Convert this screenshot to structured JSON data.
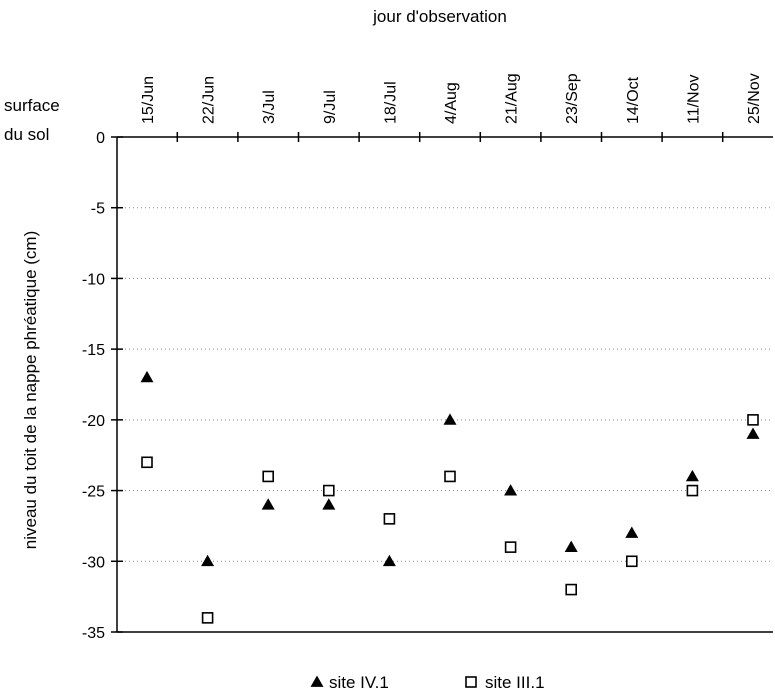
{
  "chart_data": {
    "type": "scatter",
    "title": "",
    "xlabel": "jour d'observation",
    "ylabel": "niveau du toit de la nappe phréatique (cm)",
    "corner_label_line1": "surface",
    "corner_label_line2": "du sol",
    "categories": [
      "15/Jun",
      "22/Jun",
      "3/Jul",
      "9/Jul",
      "18/Jul",
      "4/Aug",
      "21/Aug",
      "23/Sep",
      "14/Oct",
      "11/Nov",
      "25/Nov"
    ],
    "ylim": [
      -35,
      0
    ],
    "yticks": [
      0,
      -5,
      -10,
      -15,
      -20,
      -25,
      -30,
      -35
    ],
    "grid": "horizontal-dotted",
    "legend_position": "bottom",
    "series": [
      {
        "name": "site IV.1",
        "marker": "filled-triangle",
        "color": "#000000",
        "values": [
          -17,
          -30,
          -26,
          -26,
          -30,
          -20,
          -25,
          -29,
          -28,
          -24,
          -21
        ]
      },
      {
        "name": "site III.1",
        "marker": "open-square",
        "color": "#000000",
        "values": [
          -23,
          -34,
          -24,
          -25,
          -27,
          -24,
          -29,
          -32,
          -30,
          -25,
          -20
        ]
      }
    ]
  }
}
